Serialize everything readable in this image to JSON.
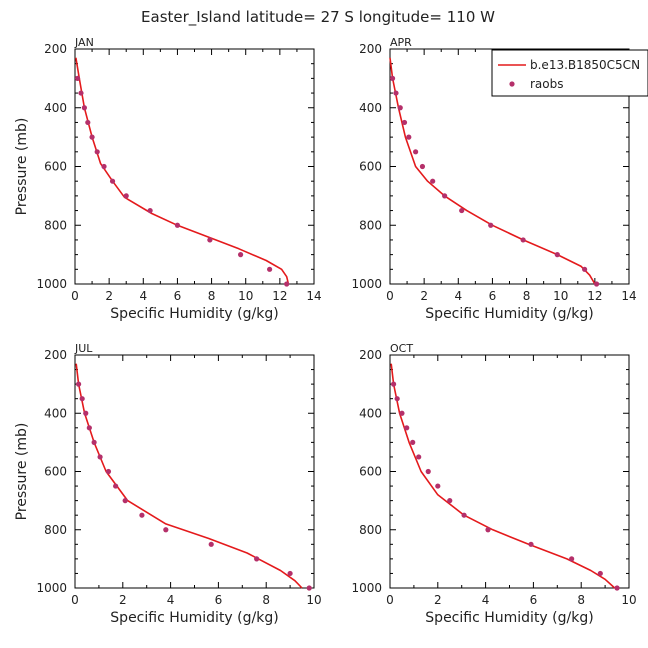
{
  "figure_title": "Easter_Island  latitude= 27 S longitude= 110 W",
  "colors": {
    "model": "#e41a1c",
    "obs": "#b5306a",
    "axis": "#000000"
  },
  "legend": {
    "model_label": "b.e13.B1850C5CN",
    "obs_label": "raobs"
  },
  "chart_data": [
    {
      "type": "line",
      "panel": "JAN",
      "xlabel": "Specific Humidity (g/kg)",
      "ylabel": "Pressure (mb)",
      "xlim": [
        0,
        14
      ],
      "ylim": [
        1000,
        200
      ],
      "yreversed": true,
      "xticks": [
        0,
        2,
        4,
        6,
        8,
        10,
        12,
        14
      ],
      "yticks": [
        200,
        400,
        600,
        800,
        1000
      ],
      "series": [
        {
          "name": "b.e13.B1850C5CN",
          "x": [
            0.05,
            0.25,
            0.55,
            1.0,
            1.5,
            2.2,
            2.9,
            4.5,
            6.0,
            7.8,
            9.6,
            11.2,
            12.1,
            12.4,
            12.5
          ],
          "y": [
            230,
            300,
            400,
            500,
            590,
            650,
            705,
            760,
            800,
            840,
            880,
            920,
            950,
            975,
            1000
          ]
        },
        {
          "name": "raobs",
          "x": [
            0.15,
            0.35,
            0.55,
            0.75,
            1.0,
            1.3,
            1.7,
            2.2,
            3.0,
            4.4,
            6.0,
            7.9,
            9.7,
            11.4,
            12.4
          ],
          "y": [
            300,
            350,
            400,
            450,
            500,
            550,
            600,
            650,
            700,
            750,
            800,
            850,
            900,
            950,
            1000
          ]
        }
      ]
    },
    {
      "type": "line",
      "panel": "APR",
      "xlabel": "Specific Humidity (g/kg)",
      "ylabel": "",
      "xlim": [
        0,
        14
      ],
      "ylim": [
        1000,
        200
      ],
      "yreversed": true,
      "xticks": [
        0,
        2,
        4,
        6,
        8,
        10,
        12,
        14
      ],
      "yticks": [
        200,
        400,
        600,
        800,
        1000
      ],
      "series": [
        {
          "name": "b.e13.B1850C5CN",
          "x": [
            0.0,
            0.15,
            0.5,
            0.9,
            1.5,
            2.2,
            3.2,
            4.5,
            6.0,
            7.8,
            9.8,
            11.2,
            11.7,
            12.0
          ],
          "y": [
            230,
            300,
            400,
            500,
            600,
            650,
            700,
            750,
            800,
            850,
            900,
            940,
            970,
            1000
          ]
        },
        {
          "name": "raobs",
          "x": [
            0.15,
            0.35,
            0.6,
            0.85,
            1.1,
            1.5,
            1.9,
            2.5,
            3.2,
            4.2,
            5.9,
            7.8,
            9.8,
            11.4,
            12.1
          ],
          "y": [
            300,
            350,
            400,
            450,
            500,
            550,
            600,
            650,
            700,
            750,
            800,
            850,
            900,
            950,
            1000
          ]
        }
      ]
    },
    {
      "type": "line",
      "panel": "JUL",
      "xlabel": "Specific Humidity (g/kg)",
      "ylabel": "Pressure (mb)",
      "xlim": [
        0,
        10
      ],
      "ylim": [
        1000,
        200
      ],
      "yreversed": true,
      "xticks": [
        0,
        2,
        4,
        6,
        8,
        10
      ],
      "yticks": [
        200,
        400,
        600,
        800,
        1000
      ],
      "series": [
        {
          "name": "b.e13.B1850C5CN",
          "x": [
            0.05,
            0.15,
            0.4,
            0.8,
            1.3,
            2.2,
            3.8,
            5.6,
            7.2,
            8.6,
            9.2,
            9.5
          ],
          "y": [
            230,
            300,
            400,
            500,
            600,
            700,
            780,
            830,
            880,
            940,
            975,
            1000
          ]
        },
        {
          "name": "raobs",
          "x": [
            0.15,
            0.3,
            0.45,
            0.6,
            0.8,
            1.05,
            1.4,
            1.7,
            2.1,
            2.8,
            3.8,
            5.7,
            7.6,
            9.0,
            9.8
          ],
          "y": [
            300,
            350,
            400,
            450,
            500,
            550,
            600,
            650,
            700,
            750,
            800,
            850,
            900,
            950,
            1000
          ]
        }
      ]
    },
    {
      "type": "line",
      "panel": "OCT",
      "xlabel": "Specific Humidity (g/kg)",
      "ylabel": "",
      "xlim": [
        0,
        10
      ],
      "ylim": [
        1000,
        200
      ],
      "yreversed": true,
      "xticks": [
        0,
        2,
        4,
        6,
        8,
        10
      ],
      "yticks": [
        200,
        400,
        600,
        800,
        1000
      ],
      "series": [
        {
          "name": "b.e13.B1850C5CN",
          "x": [
            0.05,
            0.15,
            0.4,
            0.8,
            1.3,
            2.0,
            3.1,
            4.3,
            5.8,
            7.4,
            8.4,
            9.0,
            9.4
          ],
          "y": [
            230,
            300,
            400,
            500,
            600,
            680,
            750,
            800,
            850,
            900,
            940,
            970,
            1000
          ]
        },
        {
          "name": "raobs",
          "x": [
            0.15,
            0.3,
            0.5,
            0.7,
            0.95,
            1.2,
            1.6,
            2.0,
            2.5,
            3.1,
            4.1,
            5.9,
            7.6,
            8.8,
            9.5
          ],
          "y": [
            300,
            350,
            400,
            450,
            500,
            550,
            600,
            650,
            700,
            750,
            800,
            850,
            900,
            950,
            1000
          ]
        }
      ]
    }
  ]
}
